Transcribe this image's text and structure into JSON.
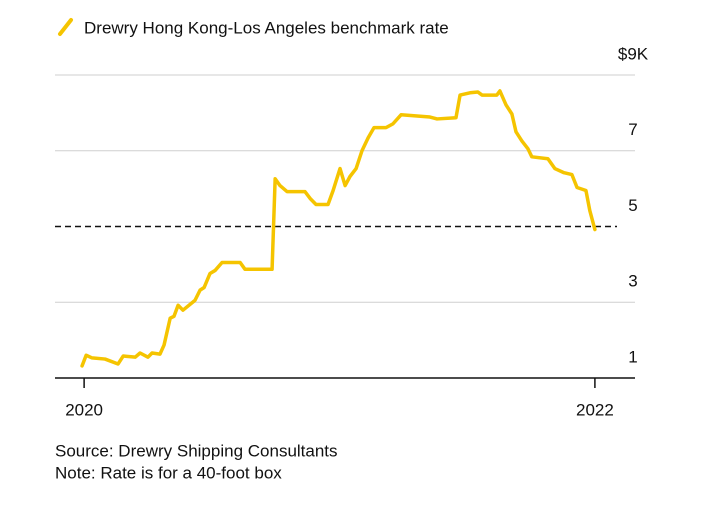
{
  "chart_data": {
    "type": "line",
    "series": [
      {
        "name": "Drewry Hong Kong-Los Angeles benchmark rate",
        "color": "#f5c400",
        "x": [
          2019.992,
          2020.008,
          2020.031,
          2020.082,
          2020.133,
          2020.153,
          2020.2,
          2020.219,
          2020.25,
          2020.266,
          2020.297,
          2020.313,
          2020.337,
          2020.352,
          2020.368,
          2020.387,
          2020.434,
          2020.454,
          2020.47,
          2020.493,
          2020.513,
          2020.54,
          2020.611,
          2020.63,
          2020.736,
          2020.748,
          2020.767,
          2020.795,
          2020.865,
          2020.885,
          2020.908,
          2020.955,
          2020.975,
          2021.002,
          2021.022,
          2021.041,
          2021.065,
          2021.088,
          2021.112,
          2021.135,
          2021.182,
          2021.209,
          2021.241,
          2021.354,
          2021.382,
          2021.456,
          2021.472,
          2021.511,
          2021.542,
          2021.558,
          2021.616,
          2021.628,
          2021.652,
          2021.675,
          2021.691,
          2021.714,
          2021.738,
          2021.753,
          2021.816,
          2021.843,
          2021.879,
          2021.91,
          2021.93,
          2021.965,
          2021.98,
          2022
        ],
        "values": [
          1.32,
          1.6,
          1.53,
          1.5,
          1.37,
          1.58,
          1.55,
          1.66,
          1.55,
          1.66,
          1.63,
          1.87,
          2.58,
          2.63,
          2.92,
          2.79,
          3.05,
          3.32,
          3.39,
          3.76,
          3.84,
          4.05,
          4.05,
          3.87,
          3.87,
          6.26,
          6.08,
          5.92,
          5.92,
          5.74,
          5.58,
          5.58,
          5.95,
          6.53,
          6.08,
          6.32,
          6.53,
          7,
          7.34,
          7.61,
          7.61,
          7.71,
          7.95,
          7.89,
          7.84,
          7.87,
          8.47,
          8.53,
          8.55,
          8.47,
          8.47,
          8.58,
          8.21,
          7.97,
          7.5,
          7.26,
          7.05,
          6.84,
          6.79,
          6.53,
          6.42,
          6.37,
          6.03,
          5.95,
          5.42,
          4.92
        ]
      }
    ],
    "xlim": [
      2019.886,
      2022.157
    ],
    "xticks": [
      2020,
      2022
    ],
    "ylim": [
      1,
      9
    ],
    "yticks": [
      1,
      3,
      5,
      7,
      {
        "value": 9,
        "label": "$9K"
      }
    ],
    "dashed_line": 5,
    "grid": true,
    "source": "Source: Drewry Shipping Consultants",
    "note": "Note: Rate is for a 40-foot box"
  }
}
